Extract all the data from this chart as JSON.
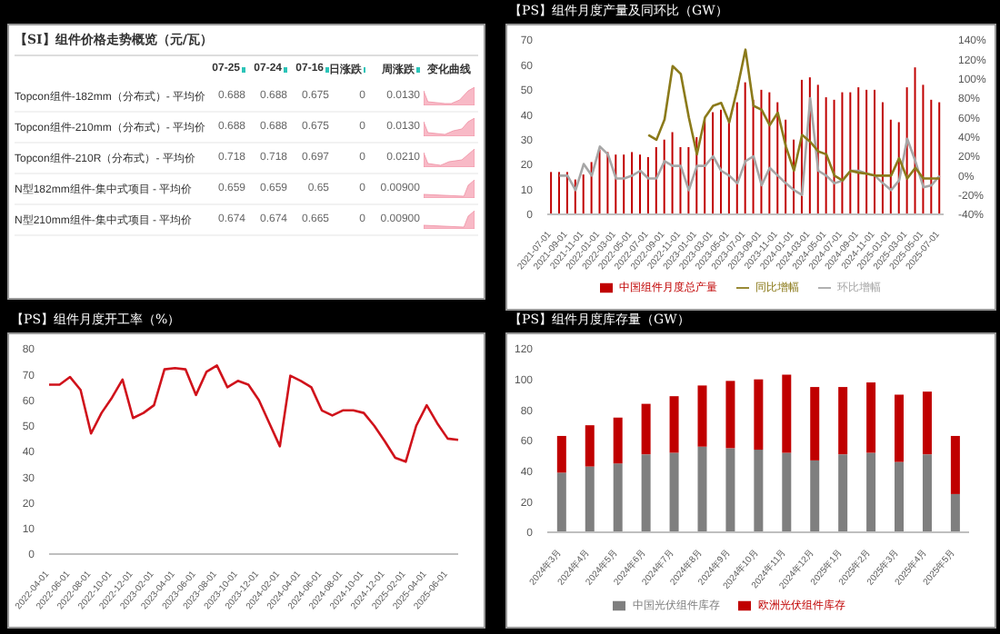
{
  "chart_data": [
    {
      "type": "other",
      "title": "【SI】组件价格走势概览（元/瓦）",
      "annotations": [
        "07-25",
        "07-24",
        "07-16",
        "日涨跌",
        "周涨跌",
        "变化曲线",
        "Topcon组件-182mm（分布式）- 平均价",
        "0.688",
        "0.688",
        "0.675",
        "0",
        "0.0130",
        "Topcon组件-210mm（分布式）- 平均价",
        "0.688",
        "0.688",
        "0.675",
        "0",
        "0.0130",
        "Topcon组件-210R（分布式）- 平均价",
        "0.718",
        "0.718",
        "0.697",
        "0",
        "0.0210",
        "N型182mm组件-集中式项目 - 平均价",
        "0.659",
        "0.659",
        "0.65",
        "0",
        "0.00900",
        "N型210mm组件-集中式项目 - 平均价",
        "0.674",
        "0.674",
        "0.665",
        "0",
        "0.00900"
      ]
    },
    {
      "type": "bar",
      "title": "【PS】组件月度产量及同环比（GW）",
      "categories": [
        "2021-07-01",
        null,
        "2021-09-01",
        null,
        "2021-11-01",
        null,
        "2022-01-01",
        null,
        "2022-03-01",
        null,
        "2022-05-01",
        null,
        "2022-07-01",
        null,
        "2022-09-01",
        null,
        "2022-11-01",
        null,
        "2023-01-01",
        null,
        "2023-03-01",
        null,
        "2023-05-01",
        null,
        "2023-07-01",
        null,
        "2023-09-01",
        null,
        "2023-11-01",
        null,
        "2024-01-01",
        null,
        "2024-03-01",
        null,
        "2024-05-01",
        null,
        "2024-07-01",
        null,
        "2024-09-01",
        null,
        "2024-11-01",
        null,
        "2025-01-01",
        null,
        "2025-03-01",
        null,
        "2025-05-01",
        null,
        "2025-07-01"
      ],
      "series": [
        {
          "name": "中国组件月度总产量",
          "type": "bar",
          "color": "#c00000",
          "values": [
            17,
            17,
            17,
            14,
            16,
            21,
            26,
            25,
            24,
            24,
            25,
            24,
            23,
            27,
            30,
            33,
            27,
            27,
            31,
            38,
            41,
            42,
            38,
            45,
            53,
            46,
            50,
            49,
            45,
            38,
            30,
            54,
            55,
            52,
            47,
            46,
            49,
            49,
            51,
            50,
            50,
            45,
            38,
            37,
            51,
            59,
            52,
            46,
            45
          ]
        },
        {
          "name": "环比增幅",
          "type": "line",
          "axis": "y2",
          "color": "#a6a6a6",
          "values": [
            null,
            0,
            0,
            -15,
            12,
            0,
            30,
            22,
            -3,
            -3,
            0,
            5,
            -3,
            -3,
            15,
            10,
            10,
            -15,
            10,
            10,
            20,
            5,
            0,
            -8,
            15,
            20,
            -10,
            8,
            0,
            -8,
            -15,
            -20,
            80,
            5,
            0,
            -8,
            -5,
            5,
            5,
            2,
            0,
            -8,
            -15,
            -5,
            38,
            15,
            -12,
            -10,
            0
          ]
        },
        {
          "name": "同比增幅",
          "type": "line",
          "axis": "y2",
          "color": "#8b7a1a",
          "values": [
            null,
            null,
            null,
            null,
            null,
            null,
            null,
            null,
            null,
            null,
            null,
            null,
            42,
            37,
            58,
            113,
            105,
            60,
            22,
            60,
            72,
            75,
            55,
            90,
            130,
            72,
            68,
            52,
            65,
            30,
            5,
            42,
            35,
            25,
            22,
            0,
            -5,
            5,
            3,
            2,
            0,
            0,
            0,
            18,
            -3,
            8,
            -3,
            -3,
            -3
          ]
        }
      ],
      "ylim": [
        0,
        70
      ],
      "yticks": [
        0,
        10,
        20,
        30,
        40,
        50,
        60,
        70
      ],
      "y2lim": [
        -40,
        140
      ],
      "y2ticks": [
        {
          "value": -40,
          "label": "-40%"
        },
        {
          "value": -20,
          "label": "-20%"
        },
        {
          "value": 0,
          "label": "0%"
        },
        {
          "value": 20,
          "label": "20%"
        },
        {
          "value": 40,
          "label": "40%"
        },
        {
          "value": 60,
          "label": "60%"
        },
        {
          "value": 80,
          "label": "80%"
        },
        {
          "value": 100,
          "label": "100%"
        },
        {
          "value": 120,
          "label": "120%"
        },
        {
          "value": 140,
          "label": "140%"
        }
      ],
      "legend": "bottom"
    },
    {
      "type": "line",
      "title": "【PS】组件月度开工率（%）",
      "categories": [
        "2022-04-01",
        null,
        "2022-06-01",
        null,
        "2022-08-01",
        null,
        "2022-10-01",
        null,
        "2022-12-01",
        null,
        "2023-02-01",
        null,
        "2023-04-01",
        null,
        "2023-06-01",
        null,
        "2023-08-01",
        null,
        "2023-10-01",
        null,
        "2023-12-01",
        null,
        "2024-02-01",
        null,
        "2024-04-01",
        null,
        "2024-06-01",
        null,
        "2024-08-01",
        null,
        "2024-10-01",
        null,
        "2024-12-01",
        null,
        "2025-02-01",
        null,
        "2025-04-01",
        null,
        "2025-06-01",
        null
      ],
      "series": [
        {
          "color": "#d0121b",
          "values": [
            66,
            66,
            69,
            64,
            47,
            55,
            61,
            68,
            53,
            55,
            58,
            72,
            72.5,
            72,
            62,
            71,
            73.5,
            65,
            67.5,
            66,
            60,
            51,
            42,
            69.5,
            67.5,
            65,
            56,
            54,
            56,
            56,
            55,
            50,
            44,
            37.5,
            36,
            50,
            58,
            51,
            45,
            44.5
          ]
        }
      ],
      "ylim": [
        0,
        80
      ],
      "yticks": [
        0,
        10,
        20,
        30,
        40,
        50,
        60,
        70,
        80
      ]
    },
    {
      "type": "bar",
      "title": "【PS】组件月度库存量（GW）",
      "stacked": true,
      "categories": [
        "2024年3月",
        "2024年4月",
        "2024年5月",
        "2024年6月",
        "2024年7月",
        "2024年8月",
        "2024年9月",
        "2024年10月",
        "2024年11月",
        "2024年12月",
        "2025年1月",
        "2025年2月",
        "2025年3月",
        "2025年4月",
        "2025年5月"
      ],
      "series": [
        {
          "name": "中国光伏组件库存",
          "color": "#7f7f7f",
          "values": [
            39,
            43,
            45,
            51,
            52,
            56,
            55,
            54,
            52,
            47,
            51,
            52,
            46,
            51,
            25
          ]
        },
        {
          "name": "欧洲光伏组件库存",
          "color": "#c00000",
          "values": [
            24,
            27,
            30,
            33,
            37,
            40,
            44,
            46,
            51,
            48,
            44,
            46,
            44,
            41,
            38
          ]
        }
      ],
      "ylim": [
        0,
        120
      ],
      "yticks": [
        0,
        20,
        40,
        60,
        80,
        100,
        120
      ],
      "legend": "bottom"
    }
  ]
}
